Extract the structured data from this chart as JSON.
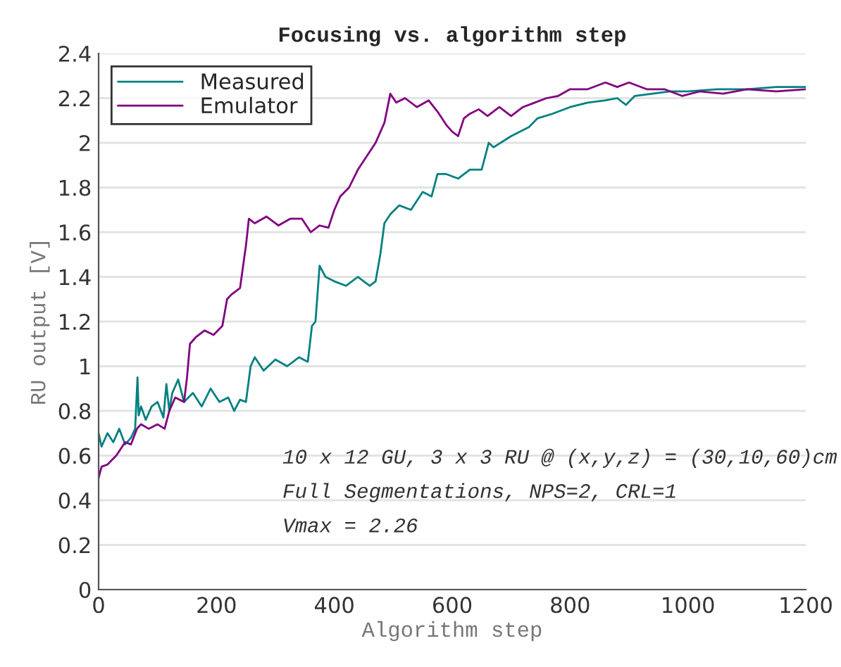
{
  "chart_data": {
    "type": "line",
    "title": "Focusing vs. algorithm step",
    "xlabel": "Algorithm step",
    "ylabel": "RU output [V]",
    "xlim": [
      0,
      1200
    ],
    "xticks": [
      0,
      200,
      400,
      600,
      800,
      1000,
      1200
    ],
    "ylim": [
      0,
      2.4
    ],
    "yticks": [
      0,
      0.2,
      0.4,
      0.6,
      0.8,
      1,
      1.2,
      1.4,
      1.6,
      1.8,
      2,
      2.2,
      2.4
    ],
    "grid": "y",
    "legend": "top left",
    "line_style": "solid",
    "marker": "none",
    "annotations": [
      "10 x 12 GU, 3 x 3 RU @ (x,y,z) = (30,10,60)cm",
      "Full Segmentations, NPS=2, CRL=1",
      "Vmax = 2.26"
    ],
    "series": [
      {
        "name": "Measured",
        "color": "#008080",
        "x": [
          0,
          5,
          15,
          25,
          35,
          45,
          55,
          62,
          66,
          68,
          72,
          80,
          90,
          100,
          110,
          115,
          120,
          125,
          135,
          145,
          160,
          175,
          190,
          205,
          220,
          230,
          240,
          250,
          258,
          265,
          280,
          300,
          320,
          340,
          355,
          362,
          368,
          375,
          385,
          400,
          420,
          440,
          460,
          470,
          478,
          485,
          495,
          510,
          530,
          550,
          565,
          575,
          590,
          610,
          630,
          650,
          662,
          670,
          700,
          730,
          745,
          770,
          800,
          830,
          860,
          880,
          895,
          910,
          940,
          970,
          1000,
          1050,
          1100,
          1150,
          1200
        ],
        "values": [
          0.7,
          0.64,
          0.7,
          0.66,
          0.72,
          0.65,
          0.68,
          0.72,
          0.95,
          0.78,
          0.82,
          0.76,
          0.82,
          0.84,
          0.77,
          0.92,
          0.8,
          0.88,
          0.94,
          0.84,
          0.88,
          0.82,
          0.9,
          0.84,
          0.86,
          0.8,
          0.85,
          0.84,
          1.0,
          1.04,
          0.98,
          1.03,
          1.0,
          1.04,
          1.02,
          1.18,
          1.2,
          1.45,
          1.4,
          1.38,
          1.36,
          1.4,
          1.36,
          1.38,
          1.5,
          1.64,
          1.68,
          1.72,
          1.7,
          1.78,
          1.76,
          1.86,
          1.86,
          1.84,
          1.88,
          1.88,
          2.0,
          1.98,
          2.03,
          2.07,
          2.11,
          2.13,
          2.16,
          2.18,
          2.19,
          2.2,
          2.17,
          2.21,
          2.22,
          2.23,
          2.23,
          2.24,
          2.24,
          2.25,
          2.25
        ]
      },
      {
        "name": "Emulator",
        "color": "#800080",
        "x": [
          0,
          5,
          15,
          30,
          45,
          55,
          65,
          72,
          85,
          100,
          112,
          120,
          130,
          145,
          150,
          155,
          165,
          180,
          195,
          210,
          218,
          225,
          240,
          250,
          255,
          265,
          285,
          305,
          325,
          345,
          360,
          375,
          390,
          400,
          410,
          425,
          440,
          455,
          470,
          485,
          495,
          505,
          520,
          540,
          560,
          575,
          590,
          600,
          610,
          620,
          630,
          645,
          660,
          680,
          700,
          720,
          740,
          760,
          780,
          800,
          830,
          860,
          880,
          900,
          930,
          960,
          990,
          1020,
          1060,
          1100,
          1150,
          1200
        ],
        "values": [
          0.5,
          0.55,
          0.56,
          0.6,
          0.66,
          0.65,
          0.72,
          0.74,
          0.72,
          0.74,
          0.72,
          0.8,
          0.86,
          0.84,
          0.95,
          1.1,
          1.13,
          1.16,
          1.14,
          1.18,
          1.3,
          1.32,
          1.35,
          1.54,
          1.66,
          1.64,
          1.67,
          1.63,
          1.66,
          1.66,
          1.6,
          1.63,
          1.62,
          1.7,
          1.76,
          1.8,
          1.88,
          1.94,
          2.0,
          2.09,
          2.22,
          2.18,
          2.2,
          2.16,
          2.19,
          2.14,
          2.08,
          2.05,
          2.03,
          2.11,
          2.13,
          2.15,
          2.12,
          2.16,
          2.12,
          2.16,
          2.18,
          2.2,
          2.21,
          2.24,
          2.24,
          2.27,
          2.25,
          2.27,
          2.24,
          2.24,
          2.21,
          2.23,
          2.22,
          2.24,
          2.23,
          2.24
        ]
      }
    ]
  }
}
